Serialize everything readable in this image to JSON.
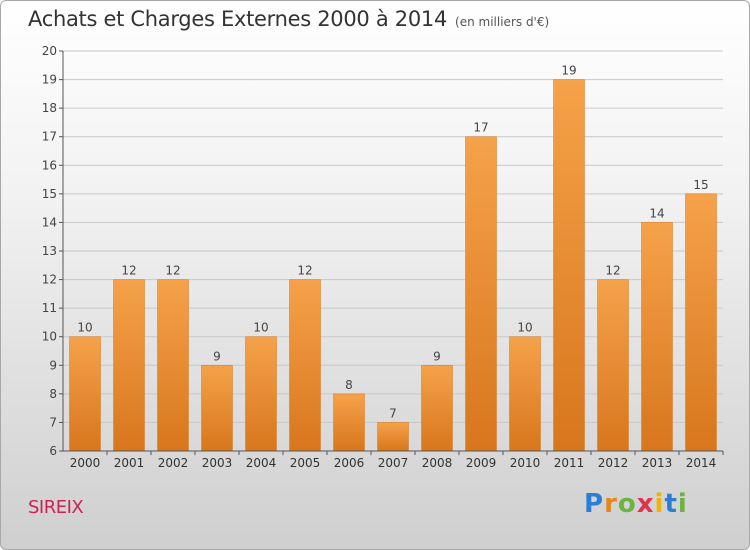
{
  "title": "Achats et Charges Externes 2000 à 2014",
  "subtitle": "(en milliers d'€)",
  "commune": "SIREIX",
  "logo": {
    "letters": [
      "P",
      "r",
      "o",
      "x",
      "i",
      "t",
      "i"
    ],
    "colors": [
      "#2a7fd4",
      "#e8861a",
      "#6cb33f",
      "#e0344e",
      "#f0b400",
      "#2a7fd4",
      "#6cb33f"
    ]
  },
  "colors": {
    "bar": "#f0963a",
    "bar_dark": "#d87a1e",
    "grid": "#c8c8c8",
    "axis": "#555555"
  },
  "chart_data": {
    "type": "bar",
    "title": "Achats et Charges Externes 2000 à 2014",
    "subtitle": "(en milliers d'€)",
    "categories": [
      "2000",
      "2001",
      "2002",
      "2003",
      "2004",
      "2005",
      "2006",
      "2007",
      "2008",
      "2009",
      "2010",
      "2011",
      "2012",
      "2013",
      "2014"
    ],
    "values": [
      10,
      12,
      12,
      9,
      10,
      12,
      8,
      7,
      9,
      17,
      10,
      19,
      12,
      14,
      15
    ],
    "ylim": [
      6,
      20
    ],
    "yticks": [
      6,
      7,
      8,
      9,
      10,
      11,
      12,
      13,
      14,
      15,
      16,
      17,
      18,
      19,
      20
    ],
    "grid": true,
    "data_labels": true
  }
}
